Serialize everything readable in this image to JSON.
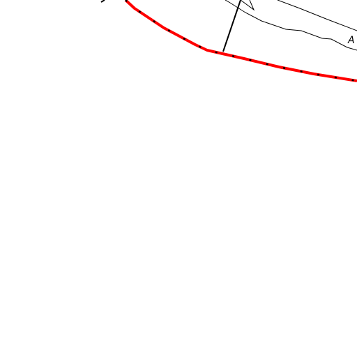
{
  "map": {
    "colors": {
      "background": "#ffffff",
      "boundary_red": "#ff0000",
      "boundary_dash": "#000000",
      "line": "#000000"
    },
    "labels": {
      "road_label": "A"
    }
  }
}
